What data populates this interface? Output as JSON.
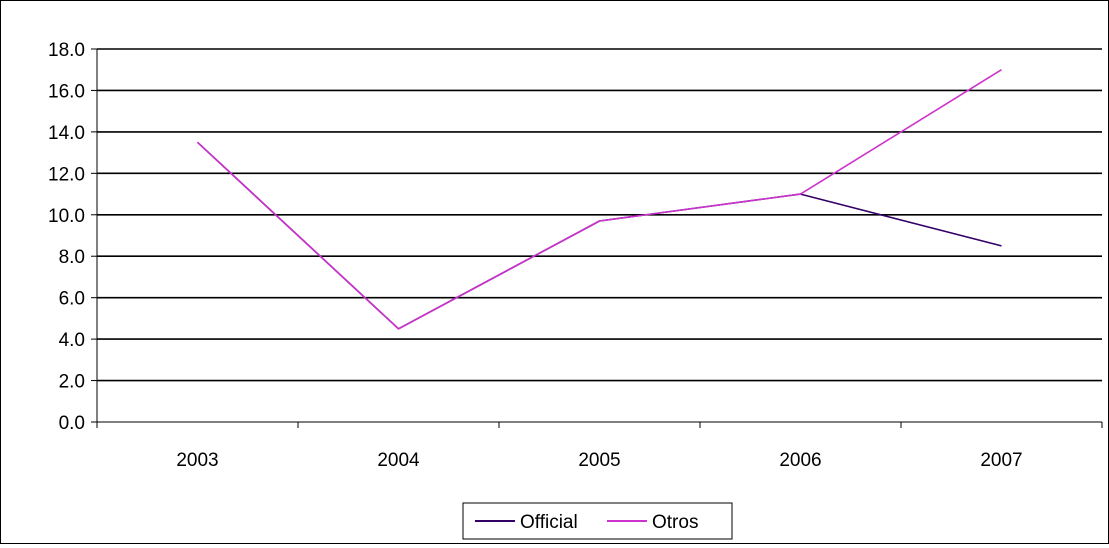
{
  "chart_data": {
    "type": "line",
    "categories": [
      "2003",
      "2004",
      "2005",
      "2006",
      "2007"
    ],
    "series": [
      {
        "name": "Official",
        "values": [
          13.5,
          4.5,
          9.7,
          11.0,
          8.5
        ],
        "color": "#330066"
      },
      {
        "name": "Otros",
        "values": [
          13.5,
          4.5,
          9.7,
          11.0,
          17.0
        ],
        "color": "#cc33cc"
      }
    ],
    "ylim": [
      0,
      18
    ],
    "yticks": [
      "0.0",
      "2.0",
      "4.0",
      "6.0",
      "8.0",
      "10.0",
      "12.0",
      "14.0",
      "16.0",
      "18.0"
    ],
    "grid": true,
    "legend": "bottom-center"
  }
}
